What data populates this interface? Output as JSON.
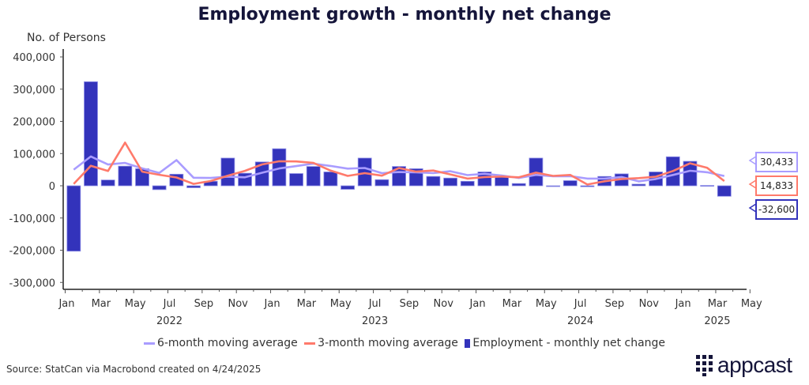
{
  "chart_data": {
    "type": "bar",
    "title": "Employment growth - monthly net change",
    "ylabel": "No. of Persons",
    "ylim": [
      -330000,
      420000
    ],
    "y_ticks": [
      "400,000",
      "300,000",
      "200,000",
      "100,000",
      "0",
      "-100,000",
      "-200,000",
      "-300,000"
    ],
    "y_tick_values": [
      400000,
      300000,
      200000,
      100000,
      0,
      -100000,
      -200000,
      -300000
    ],
    "x_start": "2022-01",
    "x_end": "2025-05",
    "x_tick_labels": [
      "Jan",
      "Mar",
      "May",
      "Jul",
      "Sep",
      "Nov",
      "Jan",
      "Mar",
      "May",
      "Jul",
      "Sep",
      "Nov",
      "Jan",
      "Mar",
      "May",
      "Jul",
      "Sep",
      "Nov",
      "Jan",
      "Mar",
      "May"
    ],
    "year_labels": [
      {
        "label": "2022",
        "month": "2022-07"
      },
      {
        "label": "2023",
        "month": "2023-07"
      },
      {
        "label": "2024",
        "month": "2024-07"
      },
      {
        "label": "2025",
        "month": "2025-03"
      }
    ],
    "categories": [
      "2022-01",
      "2022-02",
      "2022-03",
      "2022-04",
      "2022-05",
      "2022-06",
      "2022-07",
      "2022-08",
      "2022-09",
      "2022-10",
      "2022-11",
      "2022-12",
      "2023-01",
      "2023-02",
      "2023-03",
      "2023-04",
      "2023-05",
      "2023-06",
      "2023-07",
      "2023-08",
      "2023-09",
      "2023-10",
      "2023-11",
      "2023-12",
      "2024-01",
      "2024-02",
      "2024-03",
      "2024-04",
      "2024-05",
      "2024-06",
      "2024-07",
      "2024-08",
      "2024-09",
      "2024-10",
      "2024-11",
      "2024-12",
      "2025-01",
      "2025-02",
      "2025-03"
    ],
    "series": [
      {
        "name": "6-month moving average",
        "type": "line",
        "color": "#a99cff",
        "values": [
          50000,
          91000,
          66000,
          71000,
          54000,
          40000,
          79800,
          25000,
          24300,
          28500,
          26200,
          40500,
          53700,
          61000,
          68700,
          61500,
          53200,
          55200,
          39200,
          42800,
          41700,
          39300,
          45200,
          33200,
          37200,
          32000,
          24300,
          33800,
          29700,
          30000,
          22300,
          22300,
          27300,
          13800,
          21200,
          33500,
          46700,
          42000,
          30433
        ]
      },
      {
        "name": "3-month moving average",
        "type": "line",
        "color": "#ff7a6b",
        "values": [
          6000,
          62000,
          46000,
          134000,
          44000,
          34000,
          25700,
          6000,
          14700,
          31300,
          46300,
          66300,
          76000,
          75700,
          71000,
          47000,
          30700,
          39300,
          31300,
          55000,
          44000,
          47300,
          35300,
          22300,
          27000,
          28700,
          26300,
          40700,
          30700,
          33700,
          4000,
          14000,
          21000,
          23700,
          28300,
          46000,
          69700,
          55700,
          14833
        ]
      },
      {
        "name": "Employment - monthly net change",
        "type": "bar",
        "color": "#3333bb",
        "values": [
          -203000,
          323000,
          18000,
          61000,
          53000,
          -12000,
          36000,
          -6000,
          14000,
          86000,
          39000,
          74000,
          115000,
          38000,
          60000,
          43000,
          -11000,
          86000,
          19000,
          60000,
          53000,
          29000,
          24000,
          14000,
          43000,
          29000,
          7000,
          86000,
          -1000,
          16000,
          -3000,
          29000,
          37000,
          5000,
          43000,
          90000,
          76000,
          1100,
          -32600
        ]
      }
    ],
    "last_value_labels": [
      {
        "series": "6-month moving average",
        "text": "30,433",
        "color": "#a99cff"
      },
      {
        "series": "3-month moving average",
        "text": "14,833",
        "color": "#ff7a6b"
      },
      {
        "series": "Employment - monthly net change",
        "text": "-32,600",
        "color": "#3333bb"
      }
    ],
    "legend_position": "bottom",
    "grid": false
  },
  "legend": [
    "6-month moving average",
    "3-month moving average",
    "Employment - monthly net change"
  ],
  "source": "Source: StatCan via Macrobond created on 4/24/2025",
  "logo": "appcast"
}
